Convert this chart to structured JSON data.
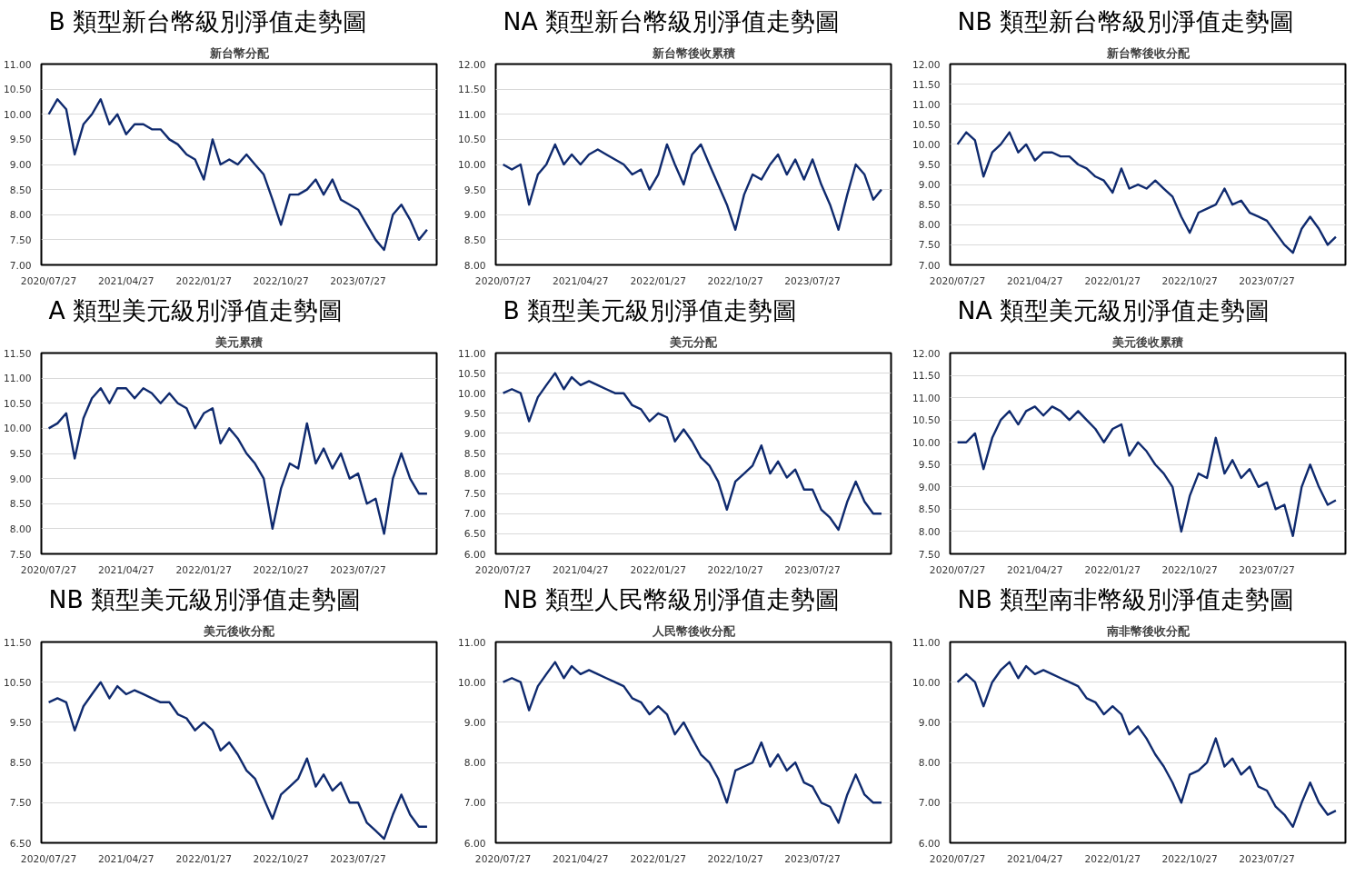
{
  "chart_data": [
    {
      "type": "line",
      "title": "B 類型新台幣級別淨值走勢圖",
      "subtitle": "新台幣分配",
      "grid": "y",
      "xlim": [
        "2020-07-01",
        "2024-04-30"
      ],
      "ylim": [
        7,
        11
      ],
      "yticks": [
        {
          "value": 7,
          "label": "7.00"
        },
        {
          "value": 7.5,
          "label": "7.50"
        },
        {
          "value": 8,
          "label": "8.00"
        },
        {
          "value": 8.5,
          "label": "8.50"
        },
        {
          "value": 9,
          "label": "9.00"
        },
        {
          "value": 9.5,
          "label": "9.50"
        },
        {
          "value": 10,
          "label": "10.00"
        },
        {
          "value": 10.5,
          "label": "10.50"
        },
        {
          "value": 11,
          "label": "11.00"
        }
      ],
      "xticks": [
        {
          "value": "2020-07-27",
          "label": "2020/07/27"
        },
        {
          "value": "2021-04-27",
          "label": "2021/04/27"
        },
        {
          "value": "2022-01-27",
          "label": "2022/01/27"
        },
        {
          "value": "2022-10-27",
          "label": "2022/10/27"
        },
        {
          "value": "2023-07-27",
          "label": "2023/07/27"
        }
      ],
      "x": [
        "2020-07-27",
        "2020-08-27",
        "2020-09-27",
        "2020-10-27",
        "2020-11-27",
        "2020-12-27",
        "2021-01-27",
        "2021-02-27",
        "2021-03-27",
        "2021-04-27",
        "2021-05-27",
        "2021-06-27",
        "2021-07-27",
        "2021-08-27",
        "2021-09-27",
        "2021-10-27",
        "2021-11-27",
        "2021-12-27",
        "2022-01-27",
        "2022-02-27",
        "2022-03-27",
        "2022-04-27",
        "2022-05-27",
        "2022-06-27",
        "2022-07-27",
        "2022-08-27",
        "2022-09-27",
        "2022-10-27",
        "2022-11-27",
        "2022-12-27",
        "2023-01-27",
        "2023-02-27",
        "2023-03-27",
        "2023-04-27",
        "2023-05-27",
        "2023-06-27",
        "2023-07-27",
        "2023-08-27",
        "2023-09-27",
        "2023-10-27",
        "2023-11-27",
        "2023-12-27",
        "2024-01-27",
        "2024-02-27",
        "2024-03-27"
      ],
      "series": [
        {
          "color": "#0f2a6e",
          "values": [
            10.0,
            10.3,
            10.1,
            9.2,
            9.8,
            10.0,
            10.3,
            9.8,
            10.0,
            9.6,
            9.8,
            9.8,
            9.7,
            9.7,
            9.5,
            9.4,
            9.2,
            9.1,
            8.7,
            9.5,
            9.0,
            9.1,
            9.0,
            9.2,
            9.0,
            8.8,
            8.3,
            7.8,
            8.4,
            8.4,
            8.5,
            8.7,
            8.4,
            8.7,
            8.3,
            8.2,
            8.1,
            7.8,
            7.5,
            7.3,
            8.0,
            8.2,
            7.9,
            7.5,
            7.7
          ]
        }
      ]
    },
    {
      "type": "line",
      "title": "NA 類型新台幣級別淨值走勢圖",
      "subtitle": "新台幣後收累積",
      "grid": "y",
      "xlim": [
        "2020-07-01",
        "2024-04-30"
      ],
      "ylim": [
        8,
        12
      ],
      "yticks": [
        {
          "value": 8,
          "label": "8.00"
        },
        {
          "value": 8.5,
          "label": "8.50"
        },
        {
          "value": 9,
          "label": "9.00"
        },
        {
          "value": 9.5,
          "label": "9.50"
        },
        {
          "value": 10,
          "label": "10.00"
        },
        {
          "value": 10.5,
          "label": "10.50"
        },
        {
          "value": 11,
          "label": "11.00"
        },
        {
          "value": 11.5,
          "label": "11.50"
        },
        {
          "value": 12,
          "label": "12.00"
        }
      ],
      "xticks": [
        {
          "value": "2020-07-27",
          "label": "2020/07/27"
        },
        {
          "value": "2021-04-27",
          "label": "2021/04/27"
        },
        {
          "value": "2022-01-27",
          "label": "2022/01/27"
        },
        {
          "value": "2022-10-27",
          "label": "2022/10/27"
        },
        {
          "value": "2023-07-27",
          "label": "2023/07/27"
        }
      ],
      "x": [
        "2020-07-27",
        "2020-08-27",
        "2020-09-27",
        "2020-10-27",
        "2020-11-27",
        "2020-12-27",
        "2021-01-27",
        "2021-02-27",
        "2021-03-27",
        "2021-04-27",
        "2021-05-27",
        "2021-06-27",
        "2021-07-27",
        "2021-08-27",
        "2021-09-27",
        "2021-10-27",
        "2021-11-27",
        "2021-12-27",
        "2022-01-27",
        "2022-02-27",
        "2022-03-27",
        "2022-04-27",
        "2022-05-27",
        "2022-06-27",
        "2022-07-27",
        "2022-08-27",
        "2022-09-27",
        "2022-10-27",
        "2022-11-27",
        "2022-12-27",
        "2023-01-27",
        "2023-02-27",
        "2023-03-27",
        "2023-04-27",
        "2023-05-27",
        "2023-06-27",
        "2023-07-27",
        "2023-08-27",
        "2023-09-27",
        "2023-10-27",
        "2023-11-27",
        "2023-12-27",
        "2024-01-27",
        "2024-02-27",
        "2024-03-27"
      ],
      "series": [
        {
          "color": "#0f2a6e",
          "values": [
            10.0,
            9.9,
            10.0,
            9.2,
            9.8,
            10.0,
            10.4,
            10.0,
            10.2,
            10.0,
            10.2,
            10.3,
            10.2,
            10.1,
            10.0,
            9.8,
            9.9,
            9.5,
            9.8,
            10.4,
            10.0,
            9.6,
            10.2,
            10.4,
            10.0,
            9.6,
            9.2,
            8.7,
            9.4,
            9.8,
            9.7,
            10.0,
            10.2,
            9.8,
            10.1,
            9.7,
            10.1,
            9.6,
            9.2,
            8.7,
            9.4,
            10.0,
            9.8,
            9.3,
            9.5
          ]
        }
      ]
    },
    {
      "type": "line",
      "title": "NB 類型新台幣級別淨值走勢圖",
      "subtitle": "新台幣後收分配",
      "grid": "y",
      "xlim": [
        "2020-07-01",
        "2024-04-30"
      ],
      "ylim": [
        7,
        12
      ],
      "yticks": [
        {
          "value": 7,
          "label": "7.00"
        },
        {
          "value": 7.5,
          "label": "7.50"
        },
        {
          "value": 8,
          "label": "8.00"
        },
        {
          "value": 8.5,
          "label": "8.50"
        },
        {
          "value": 9,
          "label": "9.00"
        },
        {
          "value": 9.5,
          "label": "9.50"
        },
        {
          "value": 10,
          "label": "10.00"
        },
        {
          "value": 10.5,
          "label": "10.50"
        },
        {
          "value": 11,
          "label": "11.00"
        },
        {
          "value": 11.5,
          "label": "11.50"
        },
        {
          "value": 12,
          "label": "12.00"
        }
      ],
      "xticks": [
        {
          "value": "2020-07-27",
          "label": "2020/07/27"
        },
        {
          "value": "2021-04-27",
          "label": "2021/04/27"
        },
        {
          "value": "2022-01-27",
          "label": "2022/01/27"
        },
        {
          "value": "2022-10-27",
          "label": "2022/10/27"
        },
        {
          "value": "2023-07-27",
          "label": "2023/07/27"
        }
      ],
      "x": [
        "2020-07-27",
        "2020-08-27",
        "2020-09-27",
        "2020-10-27",
        "2020-11-27",
        "2020-12-27",
        "2021-01-27",
        "2021-02-27",
        "2021-03-27",
        "2021-04-27",
        "2021-05-27",
        "2021-06-27",
        "2021-07-27",
        "2021-08-27",
        "2021-09-27",
        "2021-10-27",
        "2021-11-27",
        "2021-12-27",
        "2022-01-27",
        "2022-02-27",
        "2022-03-27",
        "2022-04-27",
        "2022-05-27",
        "2022-06-27",
        "2022-07-27",
        "2022-08-27",
        "2022-09-27",
        "2022-10-27",
        "2022-11-27",
        "2022-12-27",
        "2023-01-27",
        "2023-02-27",
        "2023-03-27",
        "2023-04-27",
        "2023-05-27",
        "2023-06-27",
        "2023-07-27",
        "2023-08-27",
        "2023-09-27",
        "2023-10-27",
        "2023-11-27",
        "2023-12-27",
        "2024-01-27",
        "2024-02-27",
        "2024-03-27"
      ],
      "series": [
        {
          "color": "#0f2a6e",
          "values": [
            10.0,
            10.3,
            10.1,
            9.2,
            9.8,
            10.0,
            10.3,
            9.8,
            10.0,
            9.6,
            9.8,
            9.8,
            9.7,
            9.7,
            9.5,
            9.4,
            9.2,
            9.1,
            8.8,
            9.4,
            8.9,
            9.0,
            8.9,
            9.1,
            8.9,
            8.7,
            8.2,
            7.8,
            8.3,
            8.4,
            8.5,
            8.9,
            8.5,
            8.6,
            8.3,
            8.2,
            8.1,
            7.8,
            7.5,
            7.3,
            7.9,
            8.2,
            7.9,
            7.5,
            7.7
          ]
        }
      ]
    },
    {
      "type": "line",
      "title": "A 類型美元級別淨值走勢圖",
      "subtitle": "美元累積",
      "grid": "y",
      "xlim": [
        "2020-07-01",
        "2024-04-30"
      ],
      "ylim": [
        7.5,
        11.5
      ],
      "yticks": [
        {
          "value": 7.5,
          "label": "7.50"
        },
        {
          "value": 8,
          "label": "8.00"
        },
        {
          "value": 8.5,
          "label": "8.50"
        },
        {
          "value": 9,
          "label": "9.00"
        },
        {
          "value": 9.5,
          "label": "9.50"
        },
        {
          "value": 10,
          "label": "10.00"
        },
        {
          "value": 10.5,
          "label": "10.50"
        },
        {
          "value": 11,
          "label": "11.00"
        },
        {
          "value": 11.5,
          "label": "11.50"
        }
      ],
      "xticks": [
        {
          "value": "2020-07-27",
          "label": "2020/07/27"
        },
        {
          "value": "2021-04-27",
          "label": "2021/04/27"
        },
        {
          "value": "2022-01-27",
          "label": "2022/01/27"
        },
        {
          "value": "2022-10-27",
          "label": "2022/10/27"
        },
        {
          "value": "2023-07-27",
          "label": "2023/07/27"
        }
      ],
      "x": [
        "2020-07-27",
        "2020-08-27",
        "2020-09-27",
        "2020-10-27",
        "2020-11-27",
        "2020-12-27",
        "2021-01-27",
        "2021-02-27",
        "2021-03-27",
        "2021-04-27",
        "2021-05-27",
        "2021-06-27",
        "2021-07-27",
        "2021-08-27",
        "2021-09-27",
        "2021-10-27",
        "2021-11-27",
        "2021-12-27",
        "2022-01-27",
        "2022-02-27",
        "2022-03-27",
        "2022-04-27",
        "2022-05-27",
        "2022-06-27",
        "2022-07-27",
        "2022-08-27",
        "2022-09-27",
        "2022-10-27",
        "2022-11-27",
        "2022-12-27",
        "2023-01-27",
        "2023-02-27",
        "2023-03-27",
        "2023-04-27",
        "2023-05-27",
        "2023-06-27",
        "2023-07-27",
        "2023-08-27",
        "2023-09-27",
        "2023-10-27",
        "2023-11-27",
        "2023-12-27",
        "2024-01-27",
        "2024-02-27",
        "2024-03-27"
      ],
      "series": [
        {
          "color": "#0f2a6e",
          "values": [
            10.0,
            10.1,
            10.3,
            9.4,
            10.2,
            10.6,
            10.8,
            10.5,
            10.8,
            10.8,
            10.6,
            10.8,
            10.7,
            10.5,
            10.7,
            10.5,
            10.4,
            10.0,
            10.3,
            10.4,
            9.7,
            10.0,
            9.8,
            9.5,
            9.3,
            9.0,
            8.0,
            8.8,
            9.3,
            9.2,
            10.1,
            9.3,
            9.6,
            9.2,
            9.5,
            9.0,
            9.1,
            8.5,
            8.6,
            7.9,
            9.0,
            9.5,
            9.0,
            8.7,
            8.7
          ]
        }
      ]
    },
    {
      "type": "line",
      "title": "B 類型美元級別淨值走勢圖",
      "subtitle": "美元分配",
      "grid": "y",
      "xlim": [
        "2020-07-01",
        "2024-04-30"
      ],
      "ylim": [
        6,
        11
      ],
      "yticks": [
        {
          "value": 6,
          "label": "6.00"
        },
        {
          "value": 6.5,
          "label": "6.50"
        },
        {
          "value": 7,
          "label": "7.00"
        },
        {
          "value": 7.5,
          "label": "7.50"
        },
        {
          "value": 8,
          "label": "8.00"
        },
        {
          "value": 8.5,
          "label": "8.50"
        },
        {
          "value": 9,
          "label": "9.00"
        },
        {
          "value": 9.5,
          "label": "9.50"
        },
        {
          "value": 10,
          "label": "10.00"
        },
        {
          "value": 10.5,
          "label": "10.50"
        },
        {
          "value": 11,
          "label": "11.00"
        }
      ],
      "xticks": [
        {
          "value": "2020-07-27",
          "label": "2020/07/27"
        },
        {
          "value": "2021-04-27",
          "label": "2021/04/27"
        },
        {
          "value": "2022-01-27",
          "label": "2022/01/27"
        },
        {
          "value": "2022-10-27",
          "label": "2022/10/27"
        },
        {
          "value": "2023-07-27",
          "label": "2023/07/27"
        }
      ],
      "x": [
        "2020-07-27",
        "2020-08-27",
        "2020-09-27",
        "2020-10-27",
        "2020-11-27",
        "2020-12-27",
        "2021-01-27",
        "2021-02-27",
        "2021-03-27",
        "2021-04-27",
        "2021-05-27",
        "2021-06-27",
        "2021-07-27",
        "2021-08-27",
        "2021-09-27",
        "2021-10-27",
        "2021-11-27",
        "2021-12-27",
        "2022-01-27",
        "2022-02-27",
        "2022-03-27",
        "2022-04-27",
        "2022-05-27",
        "2022-06-27",
        "2022-07-27",
        "2022-08-27",
        "2022-09-27",
        "2022-10-27",
        "2022-11-27",
        "2022-12-27",
        "2023-01-27",
        "2023-02-27",
        "2023-03-27",
        "2023-04-27",
        "2023-05-27",
        "2023-06-27",
        "2023-07-27",
        "2023-08-27",
        "2023-09-27",
        "2023-10-27",
        "2023-11-27",
        "2023-12-27",
        "2024-01-27",
        "2024-02-27",
        "2024-03-27"
      ],
      "series": [
        {
          "color": "#0f2a6e",
          "values": [
            10.0,
            10.1,
            10.0,
            9.3,
            9.9,
            10.2,
            10.5,
            10.1,
            10.4,
            10.2,
            10.3,
            10.2,
            10.1,
            10.0,
            10.0,
            9.7,
            9.6,
            9.3,
            9.5,
            9.4,
            8.8,
            9.1,
            8.8,
            8.4,
            8.2,
            7.8,
            7.1,
            7.8,
            8.0,
            8.2,
            8.7,
            8.0,
            8.3,
            7.9,
            8.1,
            7.6,
            7.6,
            7.1,
            6.9,
            6.6,
            7.3,
            7.8,
            7.3,
            7.0,
            7.0
          ]
        }
      ]
    },
    {
      "type": "line",
      "title": "NA 類型美元級別淨值走勢圖",
      "subtitle": "美元後收累積",
      "grid": "y",
      "xlim": [
        "2020-07-01",
        "2024-04-30"
      ],
      "ylim": [
        7.5,
        12
      ],
      "yticks": [
        {
          "value": 7.5,
          "label": "7.50"
        },
        {
          "value": 8,
          "label": "8.00"
        },
        {
          "value": 8.5,
          "label": "8.50"
        },
        {
          "value": 9,
          "label": "9.00"
        },
        {
          "value": 9.5,
          "label": "9.50"
        },
        {
          "value": 10,
          "label": "10.00"
        },
        {
          "value": 10.5,
          "label": "10.50"
        },
        {
          "value": 11,
          "label": "11.00"
        },
        {
          "value": 11.5,
          "label": "11.50"
        },
        {
          "value": 12,
          "label": "12.00"
        }
      ],
      "xticks": [
        {
          "value": "2020-07-27",
          "label": "2020/07/27"
        },
        {
          "value": "2021-04-27",
          "label": "2021/04/27"
        },
        {
          "value": "2022-01-27",
          "label": "2022/01/27"
        },
        {
          "value": "2022-10-27",
          "label": "2022/10/27"
        },
        {
          "value": "2023-07-27",
          "label": "2023/07/27"
        }
      ],
      "x": [
        "2020-07-27",
        "2020-08-27",
        "2020-09-27",
        "2020-10-27",
        "2020-11-27",
        "2020-12-27",
        "2021-01-27",
        "2021-02-27",
        "2021-03-27",
        "2021-04-27",
        "2021-05-27",
        "2021-06-27",
        "2021-07-27",
        "2021-08-27",
        "2021-09-27",
        "2021-10-27",
        "2021-11-27",
        "2021-12-27",
        "2022-01-27",
        "2022-02-27",
        "2022-03-27",
        "2022-04-27",
        "2022-05-27",
        "2022-06-27",
        "2022-07-27",
        "2022-08-27",
        "2022-09-27",
        "2022-10-27",
        "2022-11-27",
        "2022-12-27",
        "2023-01-27",
        "2023-02-27",
        "2023-03-27",
        "2023-04-27",
        "2023-05-27",
        "2023-06-27",
        "2023-07-27",
        "2023-08-27",
        "2023-09-27",
        "2023-10-27",
        "2023-11-27",
        "2023-12-27",
        "2024-01-27",
        "2024-02-27",
        "2024-03-27"
      ],
      "series": [
        {
          "color": "#0f2a6e",
          "values": [
            10.0,
            10.0,
            10.2,
            9.4,
            10.1,
            10.5,
            10.7,
            10.4,
            10.7,
            10.8,
            10.6,
            10.8,
            10.7,
            10.5,
            10.7,
            10.5,
            10.3,
            10.0,
            10.3,
            10.4,
            9.7,
            10.0,
            9.8,
            9.5,
            9.3,
            9.0,
            8.0,
            8.8,
            9.3,
            9.2,
            10.1,
            9.3,
            9.6,
            9.2,
            9.4,
            9.0,
            9.1,
            8.5,
            8.6,
            7.9,
            9.0,
            9.5,
            9.0,
            8.6,
            8.7
          ]
        }
      ]
    },
    {
      "type": "line",
      "title": "NB 類型美元級別淨值走勢圖",
      "subtitle": "美元後收分配",
      "grid": "y",
      "xlim": [
        "2020-07-01",
        "2024-04-30"
      ],
      "ylim": [
        6.5,
        11.5
      ],
      "yticks": [
        {
          "value": 6.5,
          "label": "6.50"
        },
        {
          "value": 7.5,
          "label": "7.50"
        },
        {
          "value": 8.5,
          "label": "8.50"
        },
        {
          "value": 9.5,
          "label": "9.50"
        },
        {
          "value": 10.5,
          "label": "10.50"
        },
        {
          "value": 11.5,
          "label": "11.50"
        }
      ],
      "xticks": [
        {
          "value": "2020-07-27",
          "label": "2020/07/27"
        },
        {
          "value": "2021-04-27",
          "label": "2021/04/27"
        },
        {
          "value": "2022-01-27",
          "label": "2022/01/27"
        },
        {
          "value": "2022-10-27",
          "label": "2022/10/27"
        },
        {
          "value": "2023-07-27",
          "label": "2023/07/27"
        }
      ],
      "x": [
        "2020-07-27",
        "2020-08-27",
        "2020-09-27",
        "2020-10-27",
        "2020-11-27",
        "2020-12-27",
        "2021-01-27",
        "2021-02-27",
        "2021-03-27",
        "2021-04-27",
        "2021-05-27",
        "2021-06-27",
        "2021-07-27",
        "2021-08-27",
        "2021-09-27",
        "2021-10-27",
        "2021-11-27",
        "2021-12-27",
        "2022-01-27",
        "2022-02-27",
        "2022-03-27",
        "2022-04-27",
        "2022-05-27",
        "2022-06-27",
        "2022-07-27",
        "2022-08-27",
        "2022-09-27",
        "2022-10-27",
        "2022-11-27",
        "2022-12-27",
        "2023-01-27",
        "2023-02-27",
        "2023-03-27",
        "2023-04-27",
        "2023-05-27",
        "2023-06-27",
        "2023-07-27",
        "2023-08-27",
        "2023-09-27",
        "2023-10-27",
        "2023-11-27",
        "2023-12-27",
        "2024-01-27",
        "2024-02-27",
        "2024-03-27"
      ],
      "series": [
        {
          "color": "#0f2a6e",
          "values": [
            10.0,
            10.1,
            10.0,
            9.3,
            9.9,
            10.2,
            10.5,
            10.1,
            10.4,
            10.2,
            10.3,
            10.2,
            10.1,
            10.0,
            10.0,
            9.7,
            9.6,
            9.3,
            9.5,
            9.3,
            8.8,
            9.0,
            8.7,
            8.3,
            8.1,
            7.6,
            7.1,
            7.7,
            7.9,
            8.1,
            8.6,
            7.9,
            8.2,
            7.8,
            8.0,
            7.5,
            7.5,
            7.0,
            6.8,
            6.6,
            7.2,
            7.7,
            7.2,
            6.9,
            6.9
          ]
        }
      ]
    },
    {
      "type": "line",
      "title": "NB 類型人民幣級別淨值走勢圖",
      "subtitle": "人民幣後收分配",
      "grid": "y",
      "xlim": [
        "2020-07-01",
        "2024-04-30"
      ],
      "ylim": [
        6,
        11
      ],
      "yticks": [
        {
          "value": 6,
          "label": "6.00"
        },
        {
          "value": 7,
          "label": "7.00"
        },
        {
          "value": 8,
          "label": "8.00"
        },
        {
          "value": 9,
          "label": "9.00"
        },
        {
          "value": 10,
          "label": "10.00"
        },
        {
          "value": 11,
          "label": "11.00"
        }
      ],
      "xticks": [
        {
          "value": "2020-07-27",
          "label": "2020/07/27"
        },
        {
          "value": "2021-04-27",
          "label": "2021/04/27"
        },
        {
          "value": "2022-01-27",
          "label": "2022/01/27"
        },
        {
          "value": "2022-10-27",
          "label": "2022/10/27"
        },
        {
          "value": "2023-07-27",
          "label": "2023/07/27"
        }
      ],
      "x": [
        "2020-07-27",
        "2020-08-27",
        "2020-09-27",
        "2020-10-27",
        "2020-11-27",
        "2020-12-27",
        "2021-01-27",
        "2021-02-27",
        "2021-03-27",
        "2021-04-27",
        "2021-05-27",
        "2021-06-27",
        "2021-07-27",
        "2021-08-27",
        "2021-09-27",
        "2021-10-27",
        "2021-11-27",
        "2021-12-27",
        "2022-01-27",
        "2022-02-27",
        "2022-03-27",
        "2022-04-27",
        "2022-05-27",
        "2022-06-27",
        "2022-07-27",
        "2022-08-27",
        "2022-09-27",
        "2022-10-27",
        "2022-11-27",
        "2022-12-27",
        "2023-01-27",
        "2023-02-27",
        "2023-03-27",
        "2023-04-27",
        "2023-05-27",
        "2023-06-27",
        "2023-07-27",
        "2023-08-27",
        "2023-09-27",
        "2023-10-27",
        "2023-11-27",
        "2023-12-27",
        "2024-01-27",
        "2024-02-27",
        "2024-03-27"
      ],
      "series": [
        {
          "color": "#0f2a6e",
          "values": [
            10.0,
            10.1,
            10.0,
            9.3,
            9.9,
            10.2,
            10.5,
            10.1,
            10.4,
            10.2,
            10.3,
            10.2,
            10.1,
            10.0,
            9.9,
            9.6,
            9.5,
            9.2,
            9.4,
            9.2,
            8.7,
            9.0,
            8.6,
            8.2,
            8.0,
            7.6,
            7.0,
            7.8,
            7.9,
            8.0,
            8.5,
            7.9,
            8.2,
            7.8,
            8.0,
            7.5,
            7.4,
            7.0,
            6.9,
            6.5,
            7.2,
            7.7,
            7.2,
            7.0,
            7.0
          ]
        }
      ]
    },
    {
      "type": "line",
      "title": "NB 類型南非幣級別淨值走勢圖",
      "subtitle": "南非幣後收分配",
      "grid": "y",
      "xlim": [
        "2020-07-01",
        "2024-04-30"
      ],
      "ylim": [
        6,
        11
      ],
      "yticks": [
        {
          "value": 6,
          "label": "6.00"
        },
        {
          "value": 7,
          "label": "7.00"
        },
        {
          "value": 8,
          "label": "8.00"
        },
        {
          "value": 9,
          "label": "9.00"
        },
        {
          "value": 10,
          "label": "10.00"
        },
        {
          "value": 11,
          "label": "11.00"
        }
      ],
      "xticks": [
        {
          "value": "2020-07-27",
          "label": "2020/07/27"
        },
        {
          "value": "2021-04-27",
          "label": "2021/04/27"
        },
        {
          "value": "2022-01-27",
          "label": "2022/01/27"
        },
        {
          "value": "2022-10-27",
          "label": "2022/10/27"
        },
        {
          "value": "2023-07-27",
          "label": "2023/07/27"
        }
      ],
      "x": [
        "2020-07-27",
        "2020-08-27",
        "2020-09-27",
        "2020-10-27",
        "2020-11-27",
        "2020-12-27",
        "2021-01-27",
        "2021-02-27",
        "2021-03-27",
        "2021-04-27",
        "2021-05-27",
        "2021-06-27",
        "2021-07-27",
        "2021-08-27",
        "2021-09-27",
        "2021-10-27",
        "2021-11-27",
        "2021-12-27",
        "2022-01-27",
        "2022-02-27",
        "2022-03-27",
        "2022-04-27",
        "2022-05-27",
        "2022-06-27",
        "2022-07-27",
        "2022-08-27",
        "2022-09-27",
        "2022-10-27",
        "2022-11-27",
        "2022-12-27",
        "2023-01-27",
        "2023-02-27",
        "2023-03-27",
        "2023-04-27",
        "2023-05-27",
        "2023-06-27",
        "2023-07-27",
        "2023-08-27",
        "2023-09-27",
        "2023-10-27",
        "2023-11-27",
        "2023-12-27",
        "2024-01-27",
        "2024-02-27",
        "2024-03-27"
      ],
      "series": [
        {
          "color": "#0f2a6e",
          "values": [
            10.0,
            10.2,
            10.0,
            9.4,
            10.0,
            10.3,
            10.5,
            10.1,
            10.4,
            10.2,
            10.3,
            10.2,
            10.1,
            10.0,
            9.9,
            9.6,
            9.5,
            9.2,
            9.4,
            9.2,
            8.7,
            8.9,
            8.6,
            8.2,
            7.9,
            7.5,
            7.0,
            7.7,
            7.8,
            8.0,
            8.6,
            7.9,
            8.1,
            7.7,
            7.9,
            7.4,
            7.3,
            6.9,
            6.7,
            6.4,
            7.0,
            7.5,
            7.0,
            6.7,
            6.8
          ]
        }
      ]
    }
  ]
}
